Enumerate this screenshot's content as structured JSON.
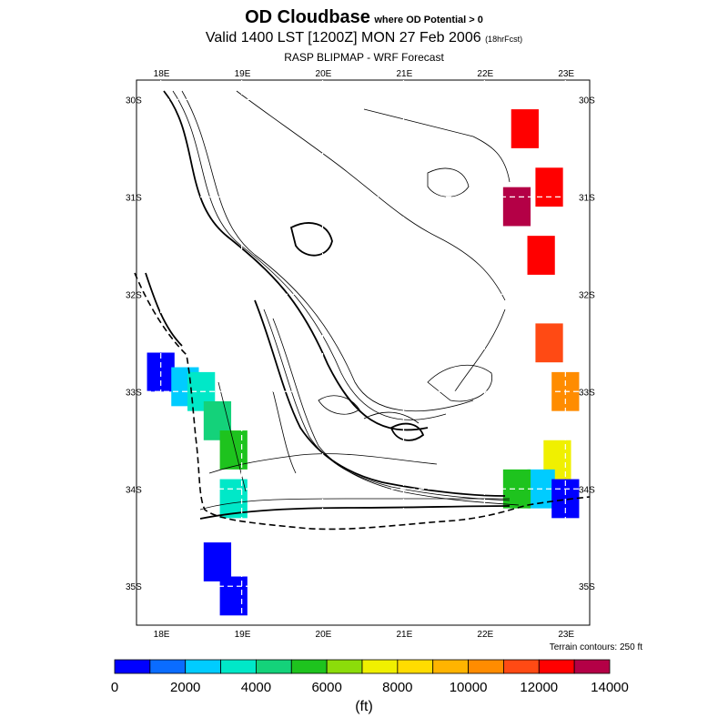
{
  "header": {
    "title_main": "OD Cloudbase",
    "title_condition": "where OD Potential > 0",
    "valid_text": "Valid 1400 LST [1200Z] MON 27 Feb 2006",
    "forecast_hours": "(18hrFcst)",
    "subtitle": "RASP BLIPMAP - WRF Forecast"
  },
  "map": {
    "top_lon_labels": [
      "18E",
      "19E",
      "20E",
      "21E",
      "22E",
      "23E"
    ],
    "bottom_lon_labels": [
      "18E",
      "19E",
      "20E",
      "21E",
      "22E",
      "23E"
    ],
    "left_lat_labels": [
      "30S",
      "31S",
      "32S",
      "33S",
      "34S",
      "35S"
    ],
    "right_lat_labels": [
      "30S",
      "31S",
      "32S",
      "33S",
      "34S",
      "35S"
    ],
    "terrain_note": "Terrain contours: 250 ft"
  },
  "colorbar": {
    "colors": [
      "#0000ff",
      "#0a6cff",
      "#00ccff",
      "#00e8c8",
      "#14d27a",
      "#1ec31e",
      "#8cdc0a",
      "#f0f000",
      "#ffdc00",
      "#ffb400",
      "#ff8c00",
      "#ff4a14",
      "#ff0000",
      "#b40046"
    ],
    "tick_labels": [
      "0",
      "2000",
      "4000",
      "6000",
      "8000",
      "10000",
      "12000",
      "14000"
    ],
    "units": "(ft)"
  },
  "chart_data": {
    "type": "heatmap",
    "variable": "OD Cloudbase",
    "units": "ft",
    "color_range": [
      0,
      14000
    ],
    "color_step": 1000,
    "lon_range": [
      17.7,
      23.3
    ],
    "lat_range": [
      -35.4,
      -29.8
    ],
    "cells": [
      {
        "lon": 18.0,
        "lat": -32.8,
        "value": 500
      },
      {
        "lon": 18.3,
        "lat": -32.95,
        "value": 2500
      },
      {
        "lon": 18.5,
        "lat": -33.0,
        "value": 3000
      },
      {
        "lon": 18.7,
        "lat": -33.3,
        "value": 4500
      },
      {
        "lon": 18.9,
        "lat": -33.6,
        "value": 5500
      },
      {
        "lon": 18.9,
        "lat": -34.1,
        "value": 3500
      },
      {
        "lon": 18.7,
        "lat": -34.75,
        "value": 500
      },
      {
        "lon": 18.9,
        "lat": -35.1,
        "value": 500
      },
      {
        "lon": 22.5,
        "lat": -30.3,
        "value": 12500
      },
      {
        "lon": 22.8,
        "lat": -30.9,
        "value": 12000
      },
      {
        "lon": 22.4,
        "lat": -31.1,
        "value": 13500
      },
      {
        "lon": 22.7,
        "lat": -31.6,
        "value": 12000
      },
      {
        "lon": 22.8,
        "lat": -32.5,
        "value": 11000
      },
      {
        "lon": 23.0,
        "lat": -33.0,
        "value": 10000
      },
      {
        "lon": 22.9,
        "lat": -33.7,
        "value": 7500
      },
      {
        "lon": 22.7,
        "lat": -34.0,
        "value": 2000
      },
      {
        "lon": 22.4,
        "lat": -34.0,
        "value": 5000
      },
      {
        "lon": 23.0,
        "lat": -34.1,
        "value": 500
      }
    ]
  }
}
